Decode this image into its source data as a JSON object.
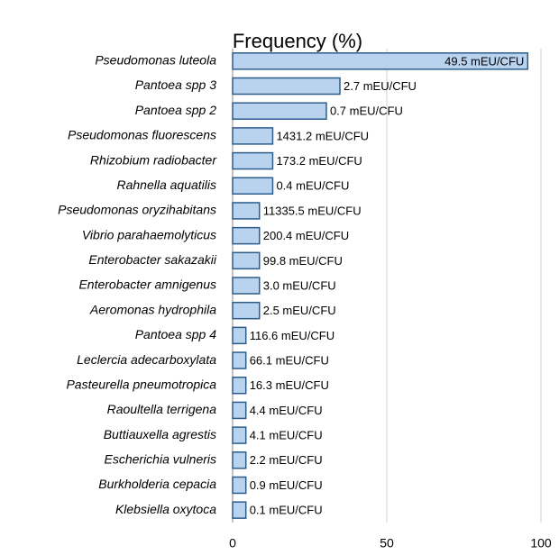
{
  "chart_data": {
    "type": "hbar",
    "title": "Frequency (%)",
    "categories": [
      "Pseudomonas luteola",
      "Pantoea spp 3",
      "Pantoea spp 2",
      "Pseudomonas fluorescens",
      "Rhizobium radiobacter",
      "Rahnella aquatilis",
      "Pseudomonas oryzihabitans",
      "Vibrio parahaemolyticus",
      "Enterobacter sakazakii",
      "Enterobacter amnigenus",
      "Aeromonas hydrophila",
      "Pantoea spp 4",
      "Leclercia adecarboxylata",
      "Pasteurella pneumotropica",
      "Raoultella terrigena",
      "Buttiauxella agrestis",
      "Escherichia vulneris",
      "Burkholderia cepacia",
      "Klebsiella oxytoca"
    ],
    "values": [
      95.7,
      34.8,
      30.4,
      13.0,
      13.0,
      13.0,
      8.7,
      8.7,
      8.7,
      8.7,
      8.7,
      4.3,
      4.3,
      4.3,
      4.3,
      4.3,
      4.3,
      4.3,
      4.3
    ],
    "annotations": [
      "49.5 mEU/CFU",
      "2.7 mEU/CFU",
      "0.7 mEU/CFU",
      "1431.2 mEU/CFU",
      "173.2 mEU/CFU",
      "0.4 mEU/CFU",
      "11335.5 mEU/CFU",
      "200.4 mEU/CFU",
      "99.8 mEU/CFU",
      "3.0 mEU/CFU",
      "2.5 mEU/CFU",
      "116.6 mEU/CFU",
      "66.1 mEU/CFU",
      "16.3 mEU/CFU",
      "4.4 mEU/CFU",
      "4.1 mEU/CFU",
      "2.2 mEU/CFU",
      "0.9 mEU/CFU",
      "0.1 mEU/CFU"
    ],
    "color": "#b9d3ee",
    "edge_color": "#2c5d8d",
    "xlim": [
      0,
      100
    ],
    "xticks": [
      0,
      50,
      100
    ],
    "grid": true
  }
}
